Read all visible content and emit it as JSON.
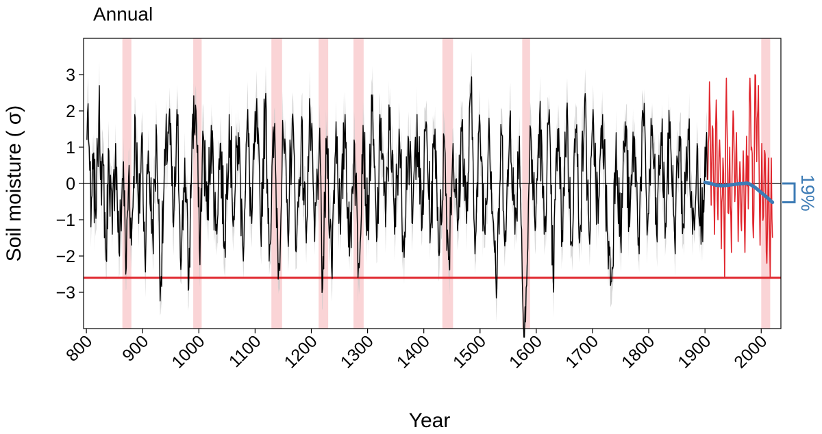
{
  "chart_data": {
    "type": "line",
    "title": "Annual",
    "xlabel": "Year",
    "ylabel": "Soil moisture ( σ)",
    "xlim": [
      795,
      2035
    ],
    "ylim": [
      -4,
      4
    ],
    "x_ticks": [
      800,
      900,
      1000,
      1100,
      1200,
      1300,
      1400,
      1500,
      1600,
      1700,
      1800,
      1900,
      2000
    ],
    "y_ticks": [
      -3,
      -2,
      -1,
      0,
      1,
      2,
      3
    ],
    "y_tick_labels": [
      "−3",
      "−2",
      "−1",
      "0",
      "1",
      "2",
      "3"
    ],
    "grid": false,
    "zero_line": 0,
    "drought_threshold": -2.6,
    "highlight_periods": [
      [
        864,
        880
      ],
      [
        990,
        1005
      ],
      [
        1129,
        1148
      ],
      [
        1213,
        1230
      ],
      [
        1275,
        1293
      ],
      [
        1433,
        1452
      ],
      [
        1575,
        1589
      ],
      [
        2000,
        2016
      ]
    ],
    "series": [
      {
        "role": "reconstruction",
        "color": "#000000",
        "uncertainty_color": "#c9c9c9",
        "x_range": [
          800,
          1905
        ],
        "peaks": [
          [
            801,
            1.2
          ],
          [
            803,
            2.2
          ],
          [
            805,
            1.0
          ],
          [
            808,
            -1.2
          ],
          [
            812,
            0.4
          ],
          [
            816,
            -0.7
          ],
          [
            820,
            0.8
          ],
          [
            823,
            2.7
          ],
          [
            827,
            -0.6
          ],
          [
            830,
            0.5
          ],
          [
            835,
            -2.1
          ],
          [
            840,
            0.9
          ],
          [
            846,
            -1.4
          ],
          [
            852,
            1.1
          ],
          [
            858,
            -1.9
          ],
          [
            866,
            0.6
          ],
          [
            870,
            -2.5
          ],
          [
            876,
            0.5
          ],
          [
            880,
            -1.7
          ],
          [
            887,
            1.8
          ],
          [
            893,
            -1.1
          ],
          [
            899,
            1.4
          ],
          [
            904,
            -2.0
          ],
          [
            910,
            0.9
          ],
          [
            918,
            -1.5
          ],
          [
            925,
            1.3
          ],
          [
            932,
            -2.8
          ],
          [
            940,
            0.5
          ],
          [
            947,
            1.8
          ],
          [
            955,
            -1.2
          ],
          [
            962,
            1.6
          ],
          [
            969,
            -2.1
          ],
          [
            975,
            0.7
          ],
          [
            982,
            -2.9
          ],
          [
            988,
            1.4
          ],
          [
            995,
            2.0
          ],
          [
            1001,
            -1.8
          ],
          [
            1008,
            1.3
          ],
          [
            1015,
            -1.0
          ],
          [
            1022,
            1.6
          ],
          [
            1030,
            -1.3
          ],
          [
            1038,
            1.1
          ],
          [
            1046,
            -1.6
          ],
          [
            1054,
            1.9
          ],
          [
            1062,
            -0.9
          ],
          [
            1070,
            1.4
          ],
          [
            1078,
            -1.7
          ],
          [
            1086,
            1.6
          ],
          [
            1094,
            -1.1
          ],
          [
            1102,
            1.9
          ],
          [
            1110,
            -1.3
          ],
          [
            1118,
            2.2
          ],
          [
            1126,
            -1.7
          ],
          [
            1134,
            1.4
          ],
          [
            1142,
            -2.2
          ],
          [
            1150,
            1.3
          ],
          [
            1158,
            -1.3
          ],
          [
            1166,
            1.8
          ],
          [
            1174,
            -1.7
          ],
          [
            1182,
            1.4
          ],
          [
            1190,
            -1.2
          ],
          [
            1198,
            1.9
          ],
          [
            1206,
            -1.6
          ],
          [
            1214,
            1.1
          ],
          [
            1220,
            -2.9
          ],
          [
            1228,
            1.3
          ],
          [
            1236,
            -2.3
          ],
          [
            1244,
            1.7
          ],
          [
            1252,
            -1.4
          ],
          [
            1260,
            1.9
          ],
          [
            1268,
            -2.0
          ],
          [
            1276,
            1.2
          ],
          [
            1284,
            -2.2
          ],
          [
            1292,
            1.6
          ],
          [
            1300,
            -1.3
          ],
          [
            1308,
            2.0
          ],
          [
            1316,
            -1.6
          ],
          [
            1324,
            1.8
          ],
          [
            1332,
            -1.2
          ],
          [
            1340,
            2.1
          ],
          [
            1348,
            -1.4
          ],
          [
            1356,
            1.5
          ],
          [
            1364,
            -1.6
          ],
          [
            1372,
            1.3
          ],
          [
            1380,
            -1.1
          ],
          [
            1388,
            1.9
          ],
          [
            1396,
            -1.3
          ],
          [
            1404,
            1.7
          ],
          [
            1412,
            -1.2
          ],
          [
            1420,
            1.5
          ],
          [
            1428,
            -1.9
          ],
          [
            1436,
            1.3
          ],
          [
            1444,
            -2.1
          ],
          [
            1452,
            1.1
          ],
          [
            1460,
            -1.3
          ],
          [
            1468,
            1.7
          ],
          [
            1476,
            -1.1
          ],
          [
            1484,
            2.5
          ],
          [
            1492,
            -1.5
          ],
          [
            1500,
            1.6
          ],
          [
            1508,
            -1.3
          ],
          [
            1516,
            1.8
          ],
          [
            1524,
            -1.1
          ],
          [
            1530,
            -2.9
          ],
          [
            1538,
            1.4
          ],
          [
            1546,
            -1.6
          ],
          [
            1554,
            2.0
          ],
          [
            1562,
            -1.4
          ],
          [
            1570,
            1.3
          ],
          [
            1577,
            -3.8
          ],
          [
            1583,
            -2.8
          ],
          [
            1590,
            1.5
          ],
          [
            1598,
            -1.3
          ],
          [
            1606,
            1.9
          ],
          [
            1614,
            -1.4
          ],
          [
            1622,
            1.7
          ],
          [
            1630,
            -2.7
          ],
          [
            1638,
            1.5
          ],
          [
            1646,
            -1.3
          ],
          [
            1654,
            2.0
          ],
          [
            1662,
            -1.6
          ],
          [
            1670,
            1.5
          ],
          [
            1678,
            -1.2
          ],
          [
            1686,
            2.3
          ],
          [
            1694,
            -1.4
          ],
          [
            1702,
            1.6
          ],
          [
            1710,
            -1.1
          ],
          [
            1718,
            1.9
          ],
          [
            1726,
            -1.3
          ],
          [
            1734,
            -2.7
          ],
          [
            1742,
            1.4
          ],
          [
            1750,
            -1.6
          ],
          [
            1758,
            1.7
          ],
          [
            1766,
            -1.2
          ],
          [
            1774,
            1.3
          ],
          [
            1782,
            -1.5
          ],
          [
            1790,
            1.9
          ],
          [
            1798,
            -1.2
          ],
          [
            1806,
            1.6
          ],
          [
            1814,
            -1.4
          ],
          [
            1822,
            1.4
          ],
          [
            1830,
            -1.1
          ],
          [
            1838,
            1.7
          ],
          [
            1846,
            -1.5
          ],
          [
            1854,
            1.3
          ],
          [
            1862,
            -1.2
          ],
          [
            1870,
            1.5
          ],
          [
            1878,
            -1.4
          ],
          [
            1886,
            1.1
          ],
          [
            1894,
            -1.3
          ],
          [
            1900,
            1.0
          ],
          [
            1904,
            0.1
          ]
        ]
      },
      {
        "role": "observations",
        "color": "#e0262d",
        "x_range": [
          1905,
          2020
        ],
        "peaks": [
          [
            1905,
            0.1
          ],
          [
            1908,
            2.8
          ],
          [
            1911,
            -0.6
          ],
          [
            1914,
            1.5
          ],
          [
            1917,
            -1.4
          ],
          [
            1920,
            2.3
          ],
          [
            1923,
            -1.0
          ],
          [
            1926,
            1.2
          ],
          [
            1929,
            -1.8
          ],
          [
            1932,
            0.7
          ],
          [
            1935,
            -2.6
          ],
          [
            1938,
            2.9
          ],
          [
            1941,
            -0.8
          ],
          [
            1944,
            1.0
          ],
          [
            1947,
            -1.9
          ],
          [
            1950,
            2.0
          ],
          [
            1953,
            -0.5
          ],
          [
            1956,
            1.4
          ],
          [
            1959,
            -1.6
          ],
          [
            1962,
            0.6
          ],
          [
            1965,
            -1.3
          ],
          [
            1968,
            0.9
          ],
          [
            1971,
            -1.9
          ],
          [
            1974,
            1.3
          ],
          [
            1977,
            -0.7
          ],
          [
            1980,
            2.9
          ],
          [
            1983,
            1.0
          ],
          [
            1986,
            -1.5
          ],
          [
            1989,
            3.0
          ],
          [
            1992,
            0.6
          ],
          [
            1995,
            2.7
          ],
          [
            1998,
            -1.7
          ],
          [
            2001,
            1.1
          ],
          [
            2004,
            -0.9
          ],
          [
            2007,
            0.8
          ],
          [
            2010,
            -2.2
          ],
          [
            2013,
            0.7
          ],
          [
            2016,
            -2.6
          ],
          [
            2018,
            0.7
          ],
          [
            2020,
            -1.5
          ]
        ]
      },
      {
        "role": "trend",
        "color": "#3c7bb5",
        "x": [
          1900,
          1910,
          1920,
          1930,
          1940,
          1950,
          1960,
          1970,
          1975,
          1980,
          1990,
          2000,
          2010,
          2020
        ],
        "y": [
          0.03,
          0.0,
          -0.05,
          -0.06,
          -0.05,
          -0.03,
          -0.01,
          0.0,
          0.01,
          -0.02,
          -0.12,
          -0.25,
          -0.38,
          -0.52
        ]
      }
    ],
    "annotation": {
      "text": "19%",
      "color": "#3c7bb5",
      "bracket_y": [
        0.0,
        -0.52
      ]
    }
  }
}
